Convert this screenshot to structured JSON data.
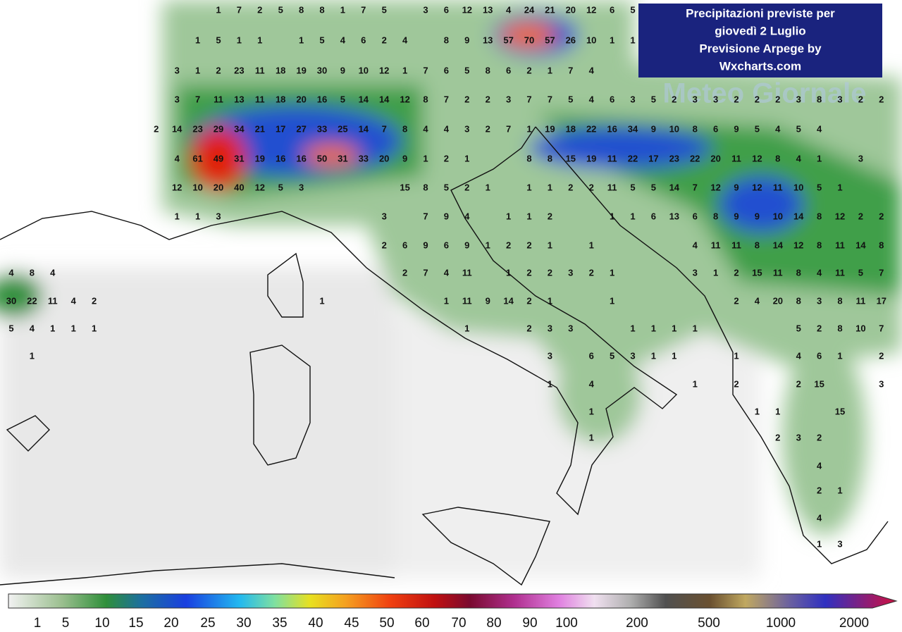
{
  "title_box": {
    "lines": [
      "Precipitazioni previste per",
      "giovedì 2 Luglio",
      "Previsione Arpege by",
      "Wxcharts.com"
    ]
  },
  "watermark": "Meteo Giornale",
  "rain_labels": [
    [
      1,
      7,
      2,
      5,
      8,
      8,
      1,
      7,
      5,
      3,
      6,
      12,
      13,
      4,
      24,
      21,
      20,
      12,
      6,
      5
    ],
    [
      1,
      5,
      1,
      1,
      1,
      5,
      4,
      6,
      2,
      4,
      8,
      9,
      13,
      57,
      70,
      57,
      26,
      10,
      1,
      1
    ],
    [
      3,
      1,
      2,
      23,
      11,
      18,
      19,
      30,
      9,
      10,
      12,
      1,
      7,
      6,
      5,
      8,
      6,
      2,
      1,
      7,
      4
    ],
    [
      3,
      7,
      11,
      13,
      11,
      18,
      20,
      16,
      5,
      14,
      14,
      12,
      8,
      7,
      2,
      2,
      3,
      7,
      7,
      5,
      4,
      6,
      3,
      5,
      2,
      3,
      3,
      2,
      2,
      2,
      3,
      8,
      3,
      2,
      2
    ],
    [
      2,
      14,
      23,
      29,
      34,
      21,
      17,
      27,
      33,
      25,
      14,
      7,
      8,
      4,
      4,
      3,
      2,
      7,
      1,
      19,
      18,
      22,
      16,
      34,
      9,
      10,
      8,
      6,
      9,
      5,
      4,
      5,
      4
    ],
    [
      4,
      61,
      49,
      31,
      19,
      16,
      16,
      50,
      31,
      33,
      20,
      9,
      1,
      2,
      1,
      8,
      8,
      15,
      19,
      11,
      22,
      17,
      23,
      22,
      20,
      11,
      12,
      8,
      4,
      1,
      3
    ],
    [
      12,
      10,
      20,
      40,
      12,
      5,
      3,
      15,
      8,
      5,
      2,
      1,
      1,
      1,
      2,
      2,
      11,
      5,
      5,
      14,
      7,
      12,
      9,
      12,
      11,
      10,
      5,
      1
    ],
    [
      1,
      1,
      3,
      3,
      7,
      9,
      4,
      1,
      1,
      2,
      1,
      1,
      6,
      13,
      6,
      8,
      9,
      9,
      10,
      14,
      8,
      12,
      2,
      2
    ],
    [
      2,
      6,
      9,
      6,
      9,
      1,
      2,
      2,
      1,
      1,
      4,
      11,
      11,
      8,
      14,
      12,
      8,
      11,
      14,
      8
    ],
    [
      4,
      8,
      4,
      2,
      7,
      4,
      11,
      1,
      2,
      2,
      3,
      2,
      1,
      3,
      1,
      2,
      15,
      11,
      8,
      4,
      11,
      5,
      7
    ],
    [
      30,
      22,
      11,
      4,
      2,
      1,
      1,
      11,
      9,
      14,
      2,
      1,
      1,
      2,
      4,
      20,
      8,
      3,
      8,
      11,
      17
    ],
    [
      5,
      4,
      1,
      1,
      1,
      1,
      2,
      3,
      3,
      1,
      1,
      1,
      1,
      5,
      2,
      8,
      10,
      7
    ],
    [
      1,
      3,
      6,
      5,
      3,
      1,
      1,
      1,
      4,
      6,
      1,
      2
    ],
    [
      1,
      4,
      1,
      2,
      2,
      15,
      3
    ],
    [
      1,
      1,
      1,
      15
    ],
    [
      1,
      2,
      3,
      2
    ],
    [
      4
    ],
    [
      2,
      1
    ],
    [
      4
    ],
    [
      1,
      3
    ]
  ],
  "colorbar": {
    "ticks": [
      1,
      5,
      10,
      15,
      20,
      25,
      30,
      35,
      40,
      45,
      50,
      60,
      70,
      80,
      90,
      100,
      200,
      500,
      1000,
      2000
    ]
  }
}
